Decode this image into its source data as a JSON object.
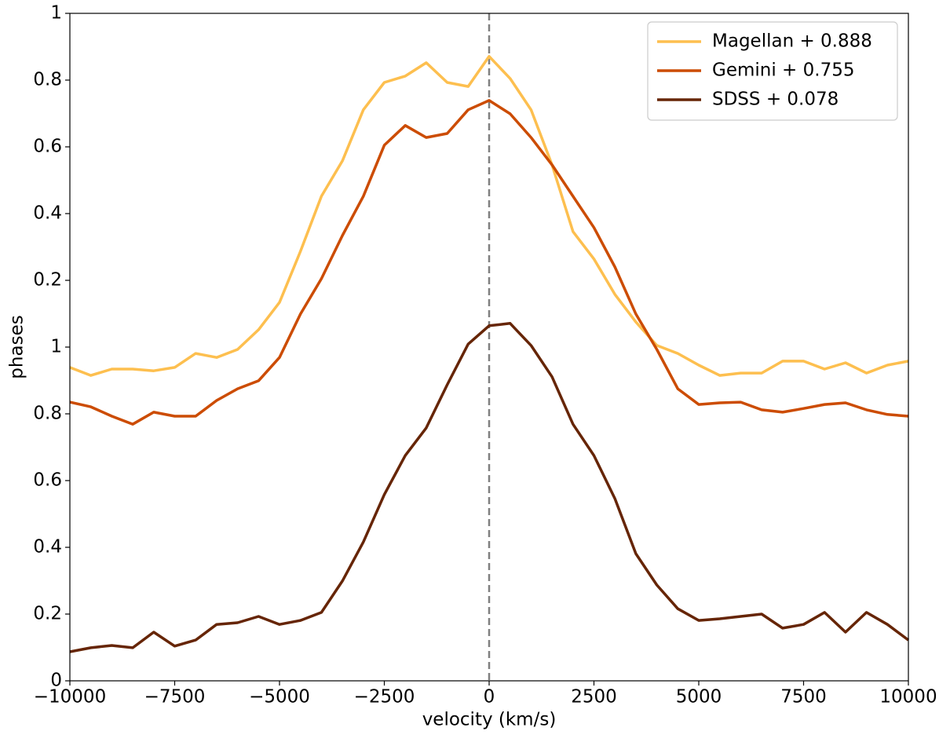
{
  "chart_data": {
    "type": "line",
    "xlabel": "velocity (km/s)",
    "ylabel": "phases",
    "x": [
      -10000,
      -9500,
      -9000,
      -8500,
      -8000,
      -7500,
      -7000,
      -6500,
      -6000,
      -5500,
      -5000,
      -4500,
      -4000,
      -3500,
      -3000,
      -2500,
      -2000,
      -1500,
      -1000,
      -500,
      0,
      500,
      1000,
      1500,
      2000,
      2500,
      3000,
      3500,
      4000,
      4500,
      5000,
      5500,
      6000,
      6500,
      7000,
      7500,
      8000,
      8500,
      9000,
      9500,
      10000
    ],
    "series": [
      {
        "name": "Magellan + 0.888",
        "color": "#fdbf4f",
        "values": [
          0.939,
          0.915,
          0.934,
          0.934,
          0.929,
          0.939,
          0.981,
          0.969,
          0.993,
          1.052,
          1.134,
          1.287,
          1.452,
          1.558,
          1.711,
          1.793,
          1.812,
          1.852,
          1.793,
          1.781,
          1.871,
          1.805,
          1.711,
          1.546,
          1.346,
          1.264,
          1.158,
          1.075,
          1.005,
          0.981,
          0.946,
          0.915,
          0.922,
          0.922,
          0.958,
          0.958,
          0.934,
          0.953,
          0.922,
          0.946,
          0.958
        ]
      },
      {
        "name": "Gemini + 0.755",
        "color": "#cc4c02",
        "values": [
          0.835,
          0.821,
          0.793,
          0.769,
          0.805,
          0.793,
          0.793,
          0.84,
          0.875,
          0.899,
          0.969,
          1.099,
          1.205,
          1.334,
          1.452,
          1.605,
          1.664,
          1.628,
          1.64,
          1.711,
          1.739,
          1.699,
          1.628,
          1.546,
          1.452,
          1.358,
          1.24,
          1.099,
          0.993,
          0.875,
          0.828,
          0.833,
          0.835,
          0.812,
          0.805,
          0.816,
          0.828,
          0.833,
          0.812,
          0.798,
          0.793
        ]
      },
      {
        "name": "SDSS + 0.078",
        "color": "#662506",
        "values": [
          0.087,
          0.099,
          0.106,
          0.099,
          0.146,
          0.104,
          0.122,
          0.169,
          0.174,
          0.193,
          0.169,
          0.181,
          0.205,
          0.299,
          0.416,
          0.558,
          0.675,
          0.758,
          0.887,
          1.009,
          1.064,
          1.071,
          1.005,
          0.911,
          0.769,
          0.675,
          0.546,
          0.381,
          0.287,
          0.216,
          0.181,
          0.186,
          0.193,
          0.2,
          0.158,
          0.169,
          0.205,
          0.146,
          0.205,
          0.169,
          0.122
        ]
      }
    ],
    "xlim": [
      -10000,
      10000
    ],
    "xticks": [
      {
        "value": -10000,
        "label": "−10000"
      },
      {
        "value": -7500,
        "label": "−7500"
      },
      {
        "value": -5000,
        "label": "−5000"
      },
      {
        "value": -2500,
        "label": "−2500"
      },
      0,
      2500,
      5000,
      7500,
      10000
    ],
    "ylim": [
      0,
      2
    ],
    "yticks": [
      0,
      0.2,
      0.4,
      0.6,
      0.8,
      1,
      {
        "value": 1.2,
        "label": "0.2"
      },
      {
        "value": 1.4,
        "label": "0.4"
      },
      {
        "value": 1.6,
        "label": "0.6"
      },
      {
        "value": 1.8,
        "label": "0.8"
      },
      {
        "value": 2,
        "label": "1"
      }
    ],
    "vlines": [
      0
    ],
    "legend": "upper right"
  }
}
